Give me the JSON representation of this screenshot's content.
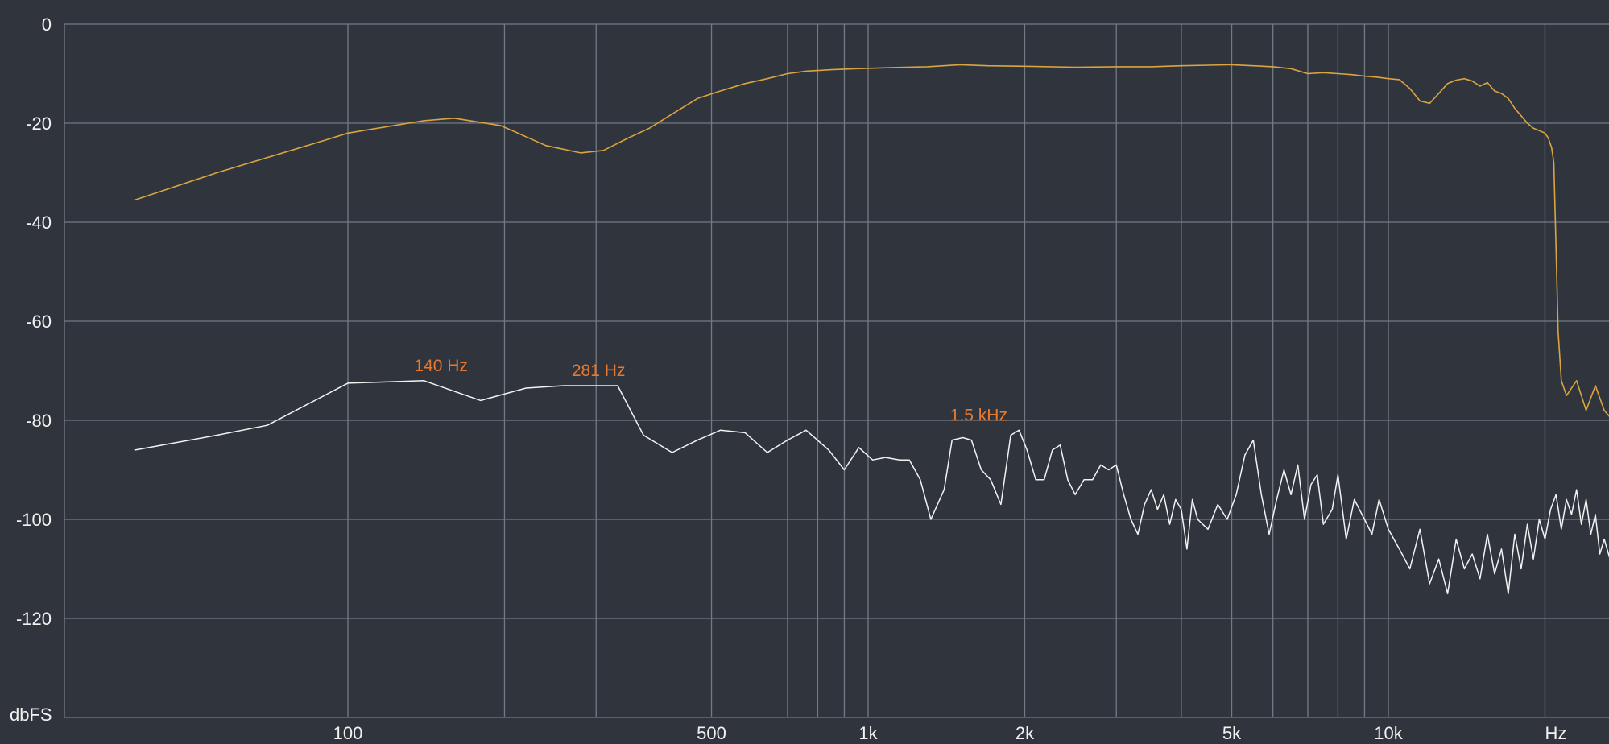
{
  "chart_data": {
    "type": "line",
    "title": "",
    "xlabel": "Hz",
    "ylabel": "dbFS",
    "x_scale": "log",
    "xlim": [
      39,
      28000
    ],
    "ylim": [
      -140,
      0
    ],
    "grid": true,
    "colors": {
      "background": "#30353d",
      "grid": "#747a84",
      "series_1": "#d9a441",
      "series_2": "#f2f2f2",
      "annotation": "#e8792d"
    },
    "y_ticks": [
      {
        "value": 0,
        "label": "0"
      },
      {
        "value": -20,
        "label": "-20"
      },
      {
        "value": -40,
        "label": "-40"
      },
      {
        "value": -60,
        "label": "-60"
      },
      {
        "value": -80,
        "label": "-80"
      },
      {
        "value": -100,
        "label": "-100"
      },
      {
        "value": -120,
        "label": "-120"
      }
    ],
    "x_ticks": [
      {
        "value": 100,
        "label": "100"
      },
      {
        "value": 500,
        "label": "500"
      },
      {
        "value": 1000,
        "label": "1k"
      },
      {
        "value": 2000,
        "label": "2k"
      },
      {
        "value": 5000,
        "label": "5k"
      },
      {
        "value": 10000,
        "label": "10k"
      }
    ],
    "x_gridlines": [
      100,
      200,
      300,
      500,
      700,
      800,
      900,
      1000,
      2000,
      3000,
      4000,
      5000,
      6000,
      7000,
      8000,
      9000,
      10000,
      20000
    ],
    "annotations": [
      {
        "x": 140,
        "y": -72,
        "label": "140 Hz"
      },
      {
        "x": 281,
        "y": -73,
        "label": "281 Hz"
      },
      {
        "x": 1500,
        "y": -82,
        "label": "1.5 kHz"
      }
    ],
    "series": [
      {
        "color": "#d9a441",
        "points": [
          [
            39,
            -35.5
          ],
          [
            56,
            -30
          ],
          [
            90,
            -23.5
          ],
          [
            100,
            -22
          ],
          [
            140,
            -19.5
          ],
          [
            160,
            -19
          ],
          [
            197,
            -20.5
          ],
          [
            240,
            -24.5
          ],
          [
            280,
            -26
          ],
          [
            310,
            -25.5
          ],
          [
            346,
            -23
          ],
          [
            380,
            -21
          ],
          [
            430,
            -17.5
          ],
          [
            470,
            -15
          ],
          [
            520,
            -13.5
          ],
          [
            580,
            -12
          ],
          [
            640,
            -11
          ],
          [
            700,
            -10
          ],
          [
            760,
            -9.5
          ],
          [
            850,
            -9.2
          ],
          [
            950,
            -9
          ],
          [
            1100,
            -8.8
          ],
          [
            1300,
            -8.6
          ],
          [
            1500,
            -8.2
          ],
          [
            1700,
            -8.4
          ],
          [
            2000,
            -8.5
          ],
          [
            2500,
            -8.7
          ],
          [
            3000,
            -8.6
          ],
          [
            3500,
            -8.6
          ],
          [
            4000,
            -8.4
          ],
          [
            4500,
            -8.3
          ],
          [
            5000,
            -8.2
          ],
          [
            5500,
            -8.4
          ],
          [
            6000,
            -8.6
          ],
          [
            6500,
            -9
          ],
          [
            7000,
            -10
          ],
          [
            7500,
            -9.8
          ],
          [
            8000,
            -10
          ],
          [
            8500,
            -10.2
          ],
          [
            9000,
            -10.5
          ],
          [
            9500,
            -10.7
          ],
          [
            10000,
            -11
          ],
          [
            10500,
            -11.2
          ],
          [
            11000,
            -13
          ],
          [
            11500,
            -15.5
          ],
          [
            12000,
            -16
          ],
          [
            12500,
            -14
          ],
          [
            13000,
            -12
          ],
          [
            13500,
            -11.3
          ],
          [
            14000,
            -11
          ],
          [
            14500,
            -11.5
          ],
          [
            15000,
            -12.5
          ],
          [
            15500,
            -11.8
          ],
          [
            16000,
            -13.5
          ],
          [
            16500,
            -14
          ],
          [
            17000,
            -15
          ],
          [
            17500,
            -17
          ],
          [
            18000,
            -18.5
          ],
          [
            18500,
            -20
          ],
          [
            19000,
            -21
          ],
          [
            19500,
            -21.5
          ],
          [
            20000,
            -22
          ],
          [
            20300,
            -23
          ],
          [
            20600,
            -25
          ],
          [
            20800,
            -28
          ],
          [
            21000,
            -45
          ],
          [
            21200,
            -62
          ],
          [
            21500,
            -72
          ],
          [
            22000,
            -75
          ],
          [
            23000,
            -72
          ],
          [
            24000,
            -78
          ],
          [
            25000,
            -73
          ],
          [
            26000,
            -78
          ],
          [
            27000,
            -80
          ],
          [
            28000,
            -82
          ]
        ]
      },
      {
        "color": "#f2f2f2",
        "points": [
          [
            39,
            -86
          ],
          [
            56,
            -83
          ],
          [
            70,
            -81
          ],
          [
            100,
            -72.5
          ],
          [
            140,
            -72
          ],
          [
            180,
            -76
          ],
          [
            220,
            -73.5
          ],
          [
            260,
            -73
          ],
          [
            281,
            -73
          ],
          [
            330,
            -73
          ],
          [
            370,
            -83
          ],
          [
            420,
            -86.5
          ],
          [
            470,
            -84
          ],
          [
            520,
            -82
          ],
          [
            580,
            -82.5
          ],
          [
            640,
            -86.5
          ],
          [
            700,
            -84
          ],
          [
            760,
            -82
          ],
          [
            840,
            -86
          ],
          [
            900,
            -90
          ],
          [
            960,
            -85.5
          ],
          [
            1020,
            -88
          ],
          [
            1080,
            -87.5
          ],
          [
            1150,
            -88
          ],
          [
            1200,
            -88
          ],
          [
            1260,
            -92
          ],
          [
            1320,
            -100
          ],
          [
            1400,
            -94
          ],
          [
            1450,
            -84
          ],
          [
            1520,
            -83.5
          ],
          [
            1580,
            -84
          ],
          [
            1650,
            -90
          ],
          [
            1720,
            -92
          ],
          [
            1800,
            -97
          ],
          [
            1880,
            -83
          ],
          [
            1950,
            -82
          ],
          [
            2020,
            -86
          ],
          [
            2100,
            -92
          ],
          [
            2180,
            -92
          ],
          [
            2260,
            -86
          ],
          [
            2340,
            -85
          ],
          [
            2420,
            -92
          ],
          [
            2500,
            -95
          ],
          [
            2600,
            -92
          ],
          [
            2700,
            -92
          ],
          [
            2800,
            -89
          ],
          [
            2900,
            -90
          ],
          [
            3000,
            -89
          ],
          [
            3100,
            -95
          ],
          [
            3200,
            -100
          ],
          [
            3300,
            -103
          ],
          [
            3400,
            -97
          ],
          [
            3500,
            -94
          ],
          [
            3600,
            -98
          ],
          [
            3700,
            -95
          ],
          [
            3800,
            -101
          ],
          [
            3900,
            -96
          ],
          [
            4000,
            -98
          ],
          [
            4100,
            -106
          ],
          [
            4200,
            -96
          ],
          [
            4300,
            -100
          ],
          [
            4500,
            -102
          ],
          [
            4700,
            -97
          ],
          [
            4900,
            -100
          ],
          [
            5100,
            -95
          ],
          [
            5300,
            -87
          ],
          [
            5500,
            -84
          ],
          [
            5700,
            -95
          ],
          [
            5900,
            -103
          ],
          [
            6100,
            -96
          ],
          [
            6300,
            -90
          ],
          [
            6500,
            -95
          ],
          [
            6700,
            -89
          ],
          [
            6900,
            -100
          ],
          [
            7100,
            -93
          ],
          [
            7300,
            -91
          ],
          [
            7500,
            -101
          ],
          [
            7800,
            -98
          ],
          [
            8000,
            -91
          ],
          [
            8300,
            -104
          ],
          [
            8600,
            -96
          ],
          [
            9000,
            -100
          ],
          [
            9300,
            -103
          ],
          [
            9600,
            -96
          ],
          [
            10000,
            -102
          ],
          [
            10500,
            -106
          ],
          [
            11000,
            -110
          ],
          [
            11500,
            -102
          ],
          [
            12000,
            -113
          ],
          [
            12500,
            -108
          ],
          [
            13000,
            -115
          ],
          [
            13500,
            -104
          ],
          [
            14000,
            -110
          ],
          [
            14500,
            -107
          ],
          [
            15000,
            -112
          ],
          [
            15500,
            -103
          ],
          [
            16000,
            -111
          ],
          [
            16500,
            -106
          ],
          [
            17000,
            -115
          ],
          [
            17500,
            -103
          ],
          [
            18000,
            -110
          ],
          [
            18500,
            -101
          ],
          [
            19000,
            -108
          ],
          [
            19500,
            -100
          ],
          [
            20000,
            -104
          ],
          [
            20500,
            -98
          ],
          [
            21000,
            -95
          ],
          [
            21500,
            -102
          ],
          [
            22000,
            -96
          ],
          [
            22500,
            -99
          ],
          [
            23000,
            -94
          ],
          [
            23500,
            -101
          ],
          [
            24000,
            -96
          ],
          [
            24500,
            -103
          ],
          [
            25000,
            -99
          ],
          [
            25500,
            -107
          ],
          [
            26000,
            -104
          ],
          [
            27000,
            -110
          ],
          [
            28000,
            -117
          ]
        ]
      }
    ]
  }
}
